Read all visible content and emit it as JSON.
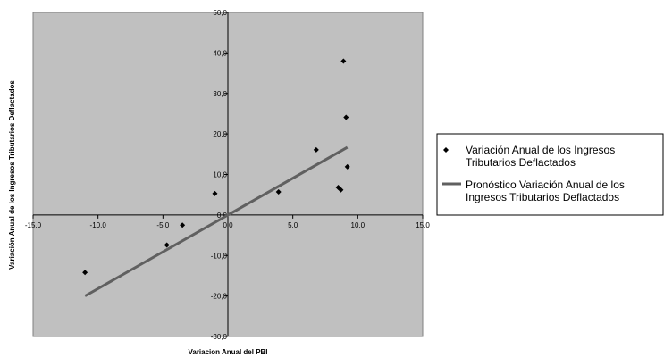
{
  "chart_data": {
    "type": "scatter",
    "title": "",
    "xlabel": "Variacion Anual del PBI",
    "ylabel": "Variación Anual de los Ingresos Tributarios Deflactados",
    "xlim": [
      -15,
      15
    ],
    "ylim": [
      -30,
      50
    ],
    "x_ticks": [
      -15,
      -10,
      -5,
      0,
      5,
      10,
      15
    ],
    "y_ticks": [
      -30,
      -20,
      -10,
      0,
      10,
      20,
      30,
      40,
      50
    ],
    "x_tick_labels": [
      "-15,0",
      "-10,0",
      "-5,0",
      "0,0",
      "5,0",
      "10,0",
      "15,0"
    ],
    "y_tick_labels": [
      "-30,0",
      "-20,0",
      "-10,0",
      "0,0",
      "10,0",
      "20,0",
      "30,0",
      "40,0",
      "50,0"
    ],
    "grid": false,
    "plot_background": "#c0c0c0",
    "legend_position": "right",
    "series": [
      {
        "name": "Variación Anual de los Ingresos Tributarios Deflactados",
        "type": "scatter",
        "marker": "diamond",
        "color": "#000000",
        "points": [
          {
            "x": -11.0,
            "y": -14.2
          },
          {
            "x": -4.7,
            "y": -7.4
          },
          {
            "x": -3.5,
            "y": -2.5
          },
          {
            "x": -1.0,
            "y": 5.3
          },
          {
            "x": 3.9,
            "y": 5.7
          },
          {
            "x": 6.8,
            "y": 16.1
          },
          {
            "x": 8.5,
            "y": 6.8
          },
          {
            "x": 8.7,
            "y": 6.2
          },
          {
            "x": 8.9,
            "y": 38.0
          },
          {
            "x": 9.1,
            "y": 24.1
          },
          {
            "x": 9.2,
            "y": 11.9
          }
        ]
      },
      {
        "name": "Pronóstico Variación Anual de los Ingresos Tributarios Deflactados",
        "type": "line",
        "color": "#606060",
        "points": [
          {
            "x": -11.0,
            "y": -20.0
          },
          {
            "x": 9.2,
            "y": 16.7
          }
        ]
      }
    ],
    "legend": [
      {
        "marker": "diamond",
        "lines": [
          "Variación Anual de los Ingresos",
          "Tributarios Deflactados"
        ]
      },
      {
        "marker": "line",
        "lines": [
          "Pronóstico Variación Anual de los",
          "Ingresos Tributarios Deflactados"
        ]
      }
    ]
  }
}
